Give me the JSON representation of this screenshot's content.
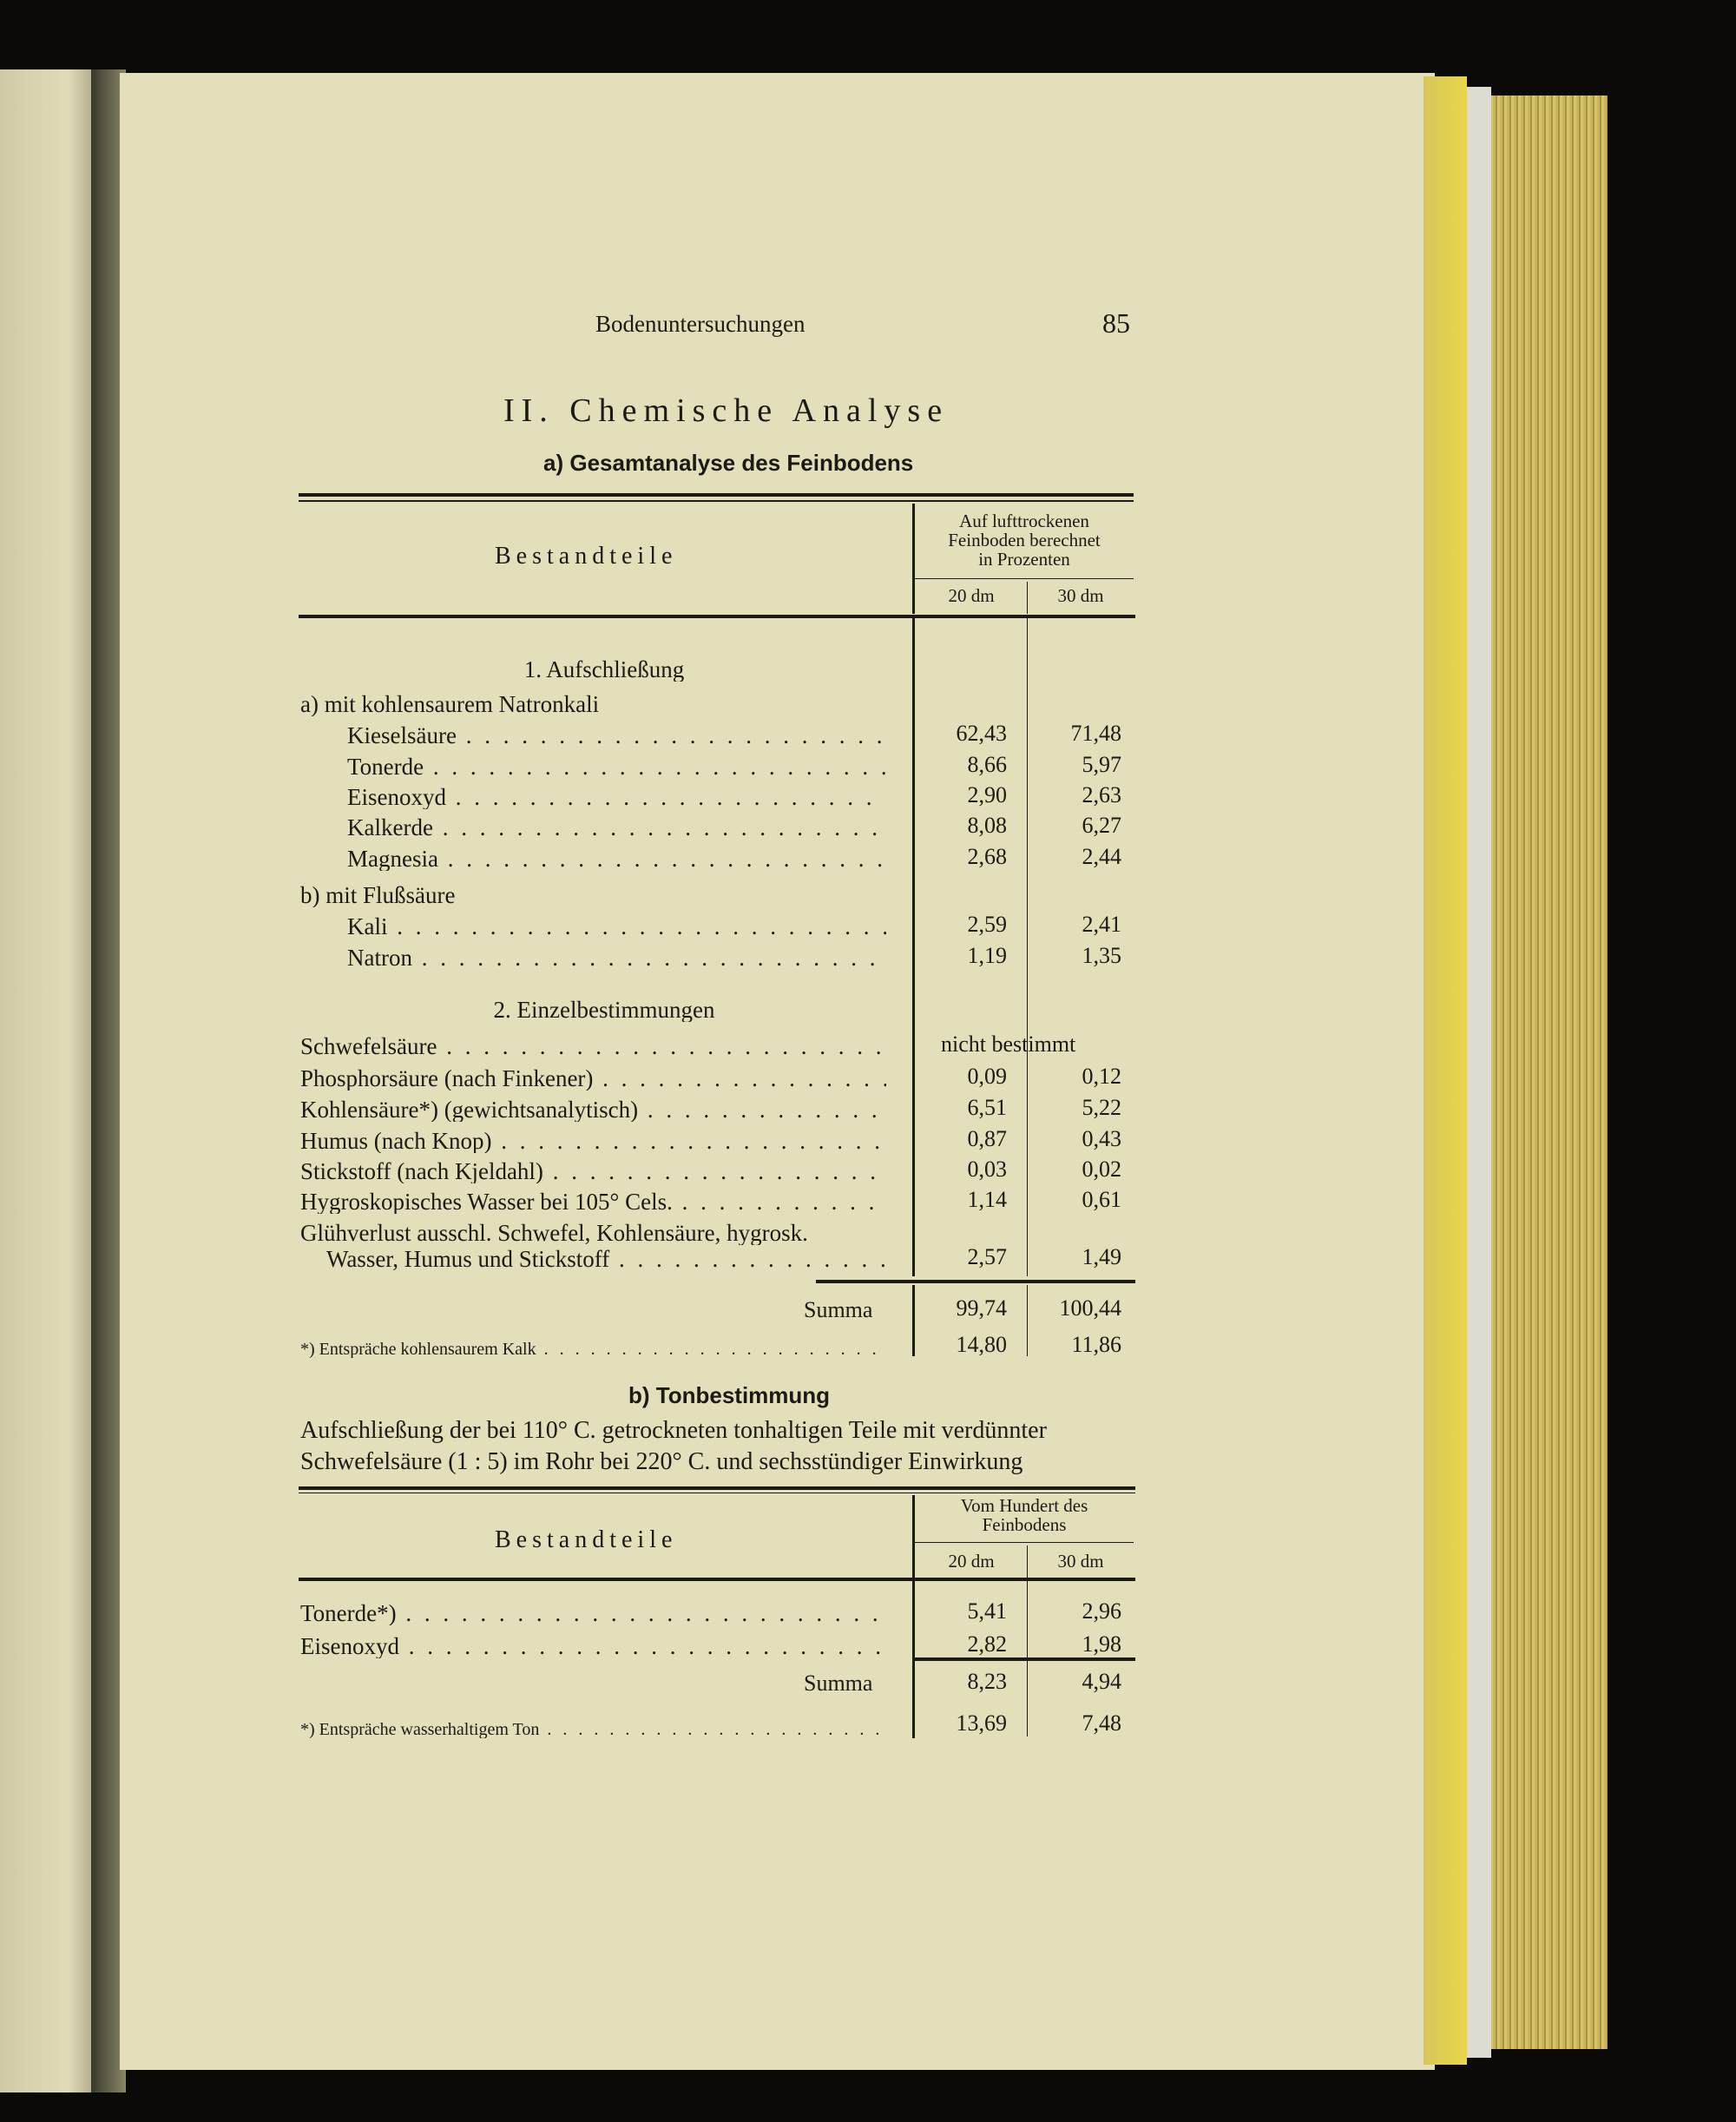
{
  "running_head": "Bodenuntersuchungen",
  "page_number": "85",
  "section_title": "II. Chemische Analyse",
  "table_a": {
    "title": "a) Gesamtanalyse des Feinbodens",
    "col_header": "Bestandteile",
    "group_header": [
      "Auf lufttrockenen",
      "Feinboden berechnet",
      "in Prozenten"
    ],
    "subcols": [
      "20 dm",
      "30 dm"
    ],
    "rows": [
      {
        "label": "1. Aufschließung",
        "type": "heading"
      },
      {
        "label": "a) mit kohlensaurem Natronkali",
        "type": "sub"
      },
      {
        "label": "Kieselsäure",
        "v1": "62,43",
        "v2": "71,48",
        "type": "ind"
      },
      {
        "label": "Tonerde",
        "v1": "8,66",
        "v2": "5,97",
        "type": "ind"
      },
      {
        "label": "Eisenoxyd",
        "v1": "2,90",
        "v2": "2,63",
        "type": "ind"
      },
      {
        "label": "Kalkerde",
        "v1": "8,08",
        "v2": "6,27",
        "type": "ind"
      },
      {
        "label": "Magnesia",
        "v1": "2,68",
        "v2": "2,44",
        "type": "ind"
      },
      {
        "label": "b) mit Flußsäure",
        "type": "sub"
      },
      {
        "label": "Kali",
        "v1": "2,59",
        "v2": "2,41",
        "type": "ind"
      },
      {
        "label": "Natron",
        "v1": "1,19",
        "v2": "1,35",
        "type": "ind"
      },
      {
        "label": "2. Einzelbestimmungen",
        "type": "heading"
      },
      {
        "label": "Schwefelsäure",
        "span": "nicht bestimmt",
        "type": "main"
      },
      {
        "label": "Phosphorsäure (nach Finkener)",
        "v1": "0,09",
        "v2": "0,12",
        "type": "main"
      },
      {
        "label": "Kohlensäure*) (gewichtsanalytisch)",
        "v1": "6,51",
        "v2": "5,22",
        "type": "main"
      },
      {
        "label": "Humus (nach Knop)",
        "v1": "0,87",
        "v2": "0,43",
        "type": "main"
      },
      {
        "label": "Stickstoff (nach Kjeldahl)",
        "v1": "0,03",
        "v2": "0,02",
        "type": "main"
      },
      {
        "label": "Hygroskopisches Wasser bei 105° Cels.",
        "v1": "1,14",
        "v2": "0,61",
        "type": "main"
      },
      {
        "label": "Glühverlust ausschl. Schwefel, Kohlensäure, hygrosk.",
        "type": "plain"
      },
      {
        "label": "Wasser, Humus und Stickstoff",
        "v1": "2,57",
        "v2": "1,49",
        "type": "cont"
      }
    ],
    "sum_label": "Summa",
    "sum_v1": "99,74",
    "sum_v2": "100,44",
    "footnote": "*) Entspräche kohlensaurem Kalk",
    "foot_v1": "14,80",
    "foot_v2": "11,86"
  },
  "table_b": {
    "title": "b) Tonbestimmung",
    "intro": [
      "Aufschließung der bei 110° C. getrockneten tonhaltigen Teile mit verdünnter",
      "Schwefelsäure (1 : 5) im Rohr bei 220° C. und sechsstündiger Einwirkung"
    ],
    "col_header": "Bestandteile",
    "group_header": [
      "Vom Hundert des",
      "Feinbodens"
    ],
    "subcols": [
      "20 dm",
      "30 dm"
    ],
    "rows": [
      {
        "label": "Tonerde*)",
        "v1": "5,41",
        "v2": "2,96"
      },
      {
        "label": "Eisenoxyd",
        "v1": "2,82",
        "v2": "1,98"
      }
    ],
    "sum_label": "Summa",
    "sum_v1": "8,23",
    "sum_v2": "4,94",
    "footnote": "*) Entspräche wasserhaltigem Ton",
    "foot_v1": "13,69",
    "foot_v2": "7,48"
  }
}
